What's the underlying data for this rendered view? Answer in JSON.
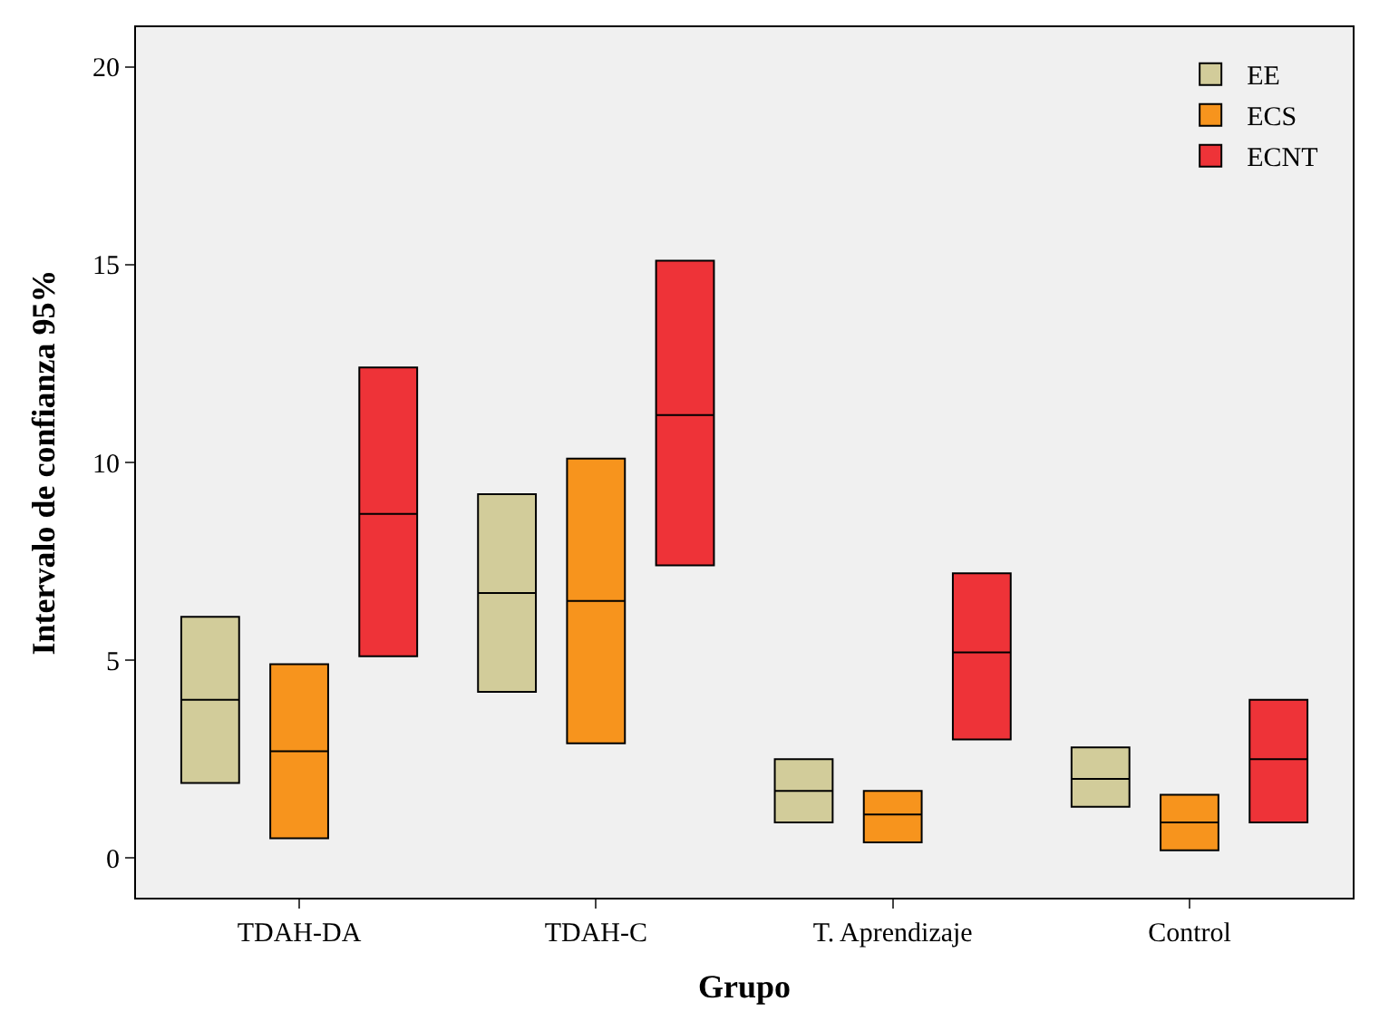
{
  "chart_data": {
    "type": "box",
    "xlabel": "Grupo",
    "ylabel": "Intervalo de confianza 95%",
    "categories": [
      "TDAH-DA",
      "TDAH-C",
      "T. Aprendizaje",
      "Control"
    ],
    "series": [
      {
        "name": "EE",
        "color": "#d2cc9a",
        "boxes": [
          {
            "low": 1.9,
            "q1": 1.9,
            "median": 4.0,
            "q3": 6.1,
            "high": 6.1
          },
          {
            "low": 4.2,
            "q1": 4.2,
            "median": 6.7,
            "q3": 9.2,
            "high": 9.2
          },
          {
            "low": 0.9,
            "q1": 0.9,
            "median": 1.7,
            "q3": 2.5,
            "high": 2.5
          },
          {
            "low": 1.3,
            "q1": 1.3,
            "median": 2.0,
            "q3": 2.8,
            "high": 2.8
          }
        ]
      },
      {
        "name": "ECS",
        "color": "#f7941d",
        "boxes": [
          {
            "low": 0.5,
            "q1": 0.5,
            "median": 2.7,
            "q3": 4.9,
            "high": 4.9
          },
          {
            "low": 2.9,
            "q1": 2.9,
            "median": 6.5,
            "q3": 10.1,
            "high": 10.1
          },
          {
            "low": 0.4,
            "q1": 0.4,
            "median": 1.1,
            "q3": 1.7,
            "high": 1.7
          },
          {
            "low": 0.2,
            "q1": 0.2,
            "median": 0.9,
            "q3": 1.6,
            "high": 1.6
          }
        ]
      },
      {
        "name": "ECNT",
        "color": "#ee3338",
        "boxes": [
          {
            "low": 5.1,
            "q1": 5.1,
            "median": 8.7,
            "q3": 12.4,
            "high": 12.4
          },
          {
            "low": 7.4,
            "q1": 7.4,
            "median": 11.2,
            "q3": 15.1,
            "high": 15.1
          },
          {
            "low": 3.0,
            "q1": 3.0,
            "median": 5.2,
            "q3": 7.2,
            "high": 7.2
          },
          {
            "low": 0.9,
            "q1": 0.9,
            "median": 2.5,
            "q3": 4.0,
            "high": 4.0
          }
        ]
      }
    ],
    "ylim": [
      -1,
      21
    ],
    "yticks": [
      0,
      5,
      10,
      15,
      20
    ],
    "grid": false,
    "legend": "top right"
  }
}
